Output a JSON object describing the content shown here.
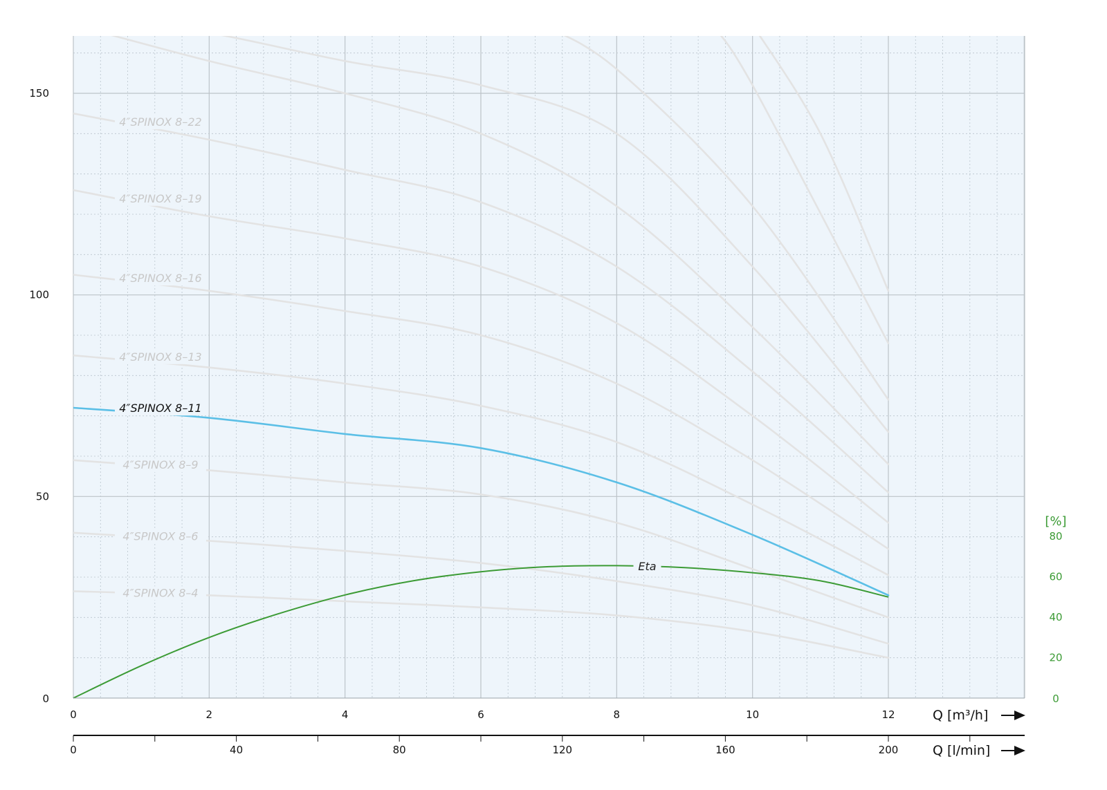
{
  "chart_data": {
    "type": "line",
    "x_axis": {
      "label": "Q [m³/h]",
      "range": [
        0,
        14
      ],
      "ticks": [
        "0",
        "2",
        "4",
        "6",
        "8",
        "10",
        "12"
      ]
    },
    "x2_axis": {
      "label": "Q [l/min]",
      "ticks": [
        "0",
        "40",
        "80",
        "120",
        "160",
        "200"
      ]
    },
    "y_axis": {
      "range": [
        0,
        165
      ],
      "ticks": [
        "0",
        "50",
        "100",
        "150"
      ]
    },
    "y2_axis": {
      "unit": "[%]",
      "range": [
        0,
        80
      ],
      "ticks": [
        "0",
        "20",
        "40",
        "60",
        "80"
      ]
    },
    "grid": true,
    "series": [
      {
        "name": "4″SPINOX 8–4",
        "highlighted": false,
        "x": [
          0,
          2,
          4,
          6,
          8,
          10,
          12
        ],
        "y": [
          26.5,
          25.5,
          24,
          22.5,
          20.5,
          16.5,
          10
        ]
      },
      {
        "name": "4″SPINOX 8–6",
        "highlighted": false,
        "x": [
          0,
          2,
          4,
          6,
          8,
          10,
          12
        ],
        "y": [
          41,
          39,
          36.5,
          33.5,
          29,
          23,
          13.5
        ]
      },
      {
        "name": "4″SPINOX 8–9",
        "highlighted": false,
        "x": [
          0,
          2,
          4,
          6,
          8,
          10,
          12
        ],
        "y": [
          59,
          56.5,
          53.5,
          50.5,
          43.5,
          32,
          20
        ]
      },
      {
        "name": "4″SPINOX 8–11",
        "highlighted": true,
        "x": [
          0,
          2,
          4,
          6,
          8,
          10,
          12
        ],
        "y": [
          72,
          69.5,
          65.5,
          62,
          53.5,
          40.5,
          25.5
        ]
      },
      {
        "name": "4″SPINOX 8–13",
        "highlighted": false,
        "x": [
          0,
          2,
          4,
          6,
          8,
          10,
          12
        ],
        "y": [
          85,
          82,
          78,
          72.5,
          63.5,
          48,
          30.5
        ]
      },
      {
        "name": "4″SPINOX 8–16",
        "highlighted": false,
        "x": [
          0,
          2,
          4,
          6,
          8,
          10,
          12
        ],
        "y": [
          105,
          101,
          96,
          90,
          78,
          59,
          37
        ]
      },
      {
        "name": "4″SPINOX 8–19",
        "highlighted": false,
        "x": [
          0,
          2,
          4,
          6,
          8,
          10,
          12
        ],
        "y": [
          126,
          119.5,
          114,
          107,
          93,
          70,
          43.5
        ]
      },
      {
        "name": "4″SPINOX 8–22",
        "highlighted": false,
        "x": [
          0,
          2,
          4,
          6,
          8,
          10,
          12
        ],
        "y": [
          145,
          138.5,
          131,
          123,
          107,
          81,
          51
        ]
      },
      {
        "name": "",
        "highlighted": false,
        "x": [
          0,
          2,
          4,
          6,
          8,
          10,
          12
        ],
        "y": [
          167,
          158,
          150,
          140,
          122,
          92,
          58
        ]
      },
      {
        "name": "",
        "highlighted": false,
        "x": [
          0.8,
          2,
          4,
          6,
          8,
          10,
          12
        ],
        "y": [
          167,
          165,
          158,
          152,
          140,
          107,
          66
        ]
      },
      {
        "name": "",
        "highlighted": false,
        "x": [
          6.9,
          8,
          10,
          12
        ],
        "y": [
          167,
          156,
          122,
          74
        ]
      },
      {
        "name": "",
        "highlighted": false,
        "x": [
          9.4,
          10,
          12
        ],
        "y": [
          167,
          152,
          88
        ]
      },
      {
        "name": "",
        "highlighted": false,
        "x": [
          10,
          11,
          12
        ],
        "y": [
          167,
          140,
          101
        ]
      }
    ],
    "efficiency": {
      "name": "Eta",
      "axis": "y2",
      "x": [
        0,
        1,
        2,
        3,
        4,
        5,
        6,
        7,
        8,
        9,
        10,
        11,
        12
      ],
      "y": [
        0,
        16,
        30,
        41.5,
        51,
        58,
        62.5,
        65,
        65.5,
        64.5,
        62,
        58,
        50
      ]
    }
  }
}
